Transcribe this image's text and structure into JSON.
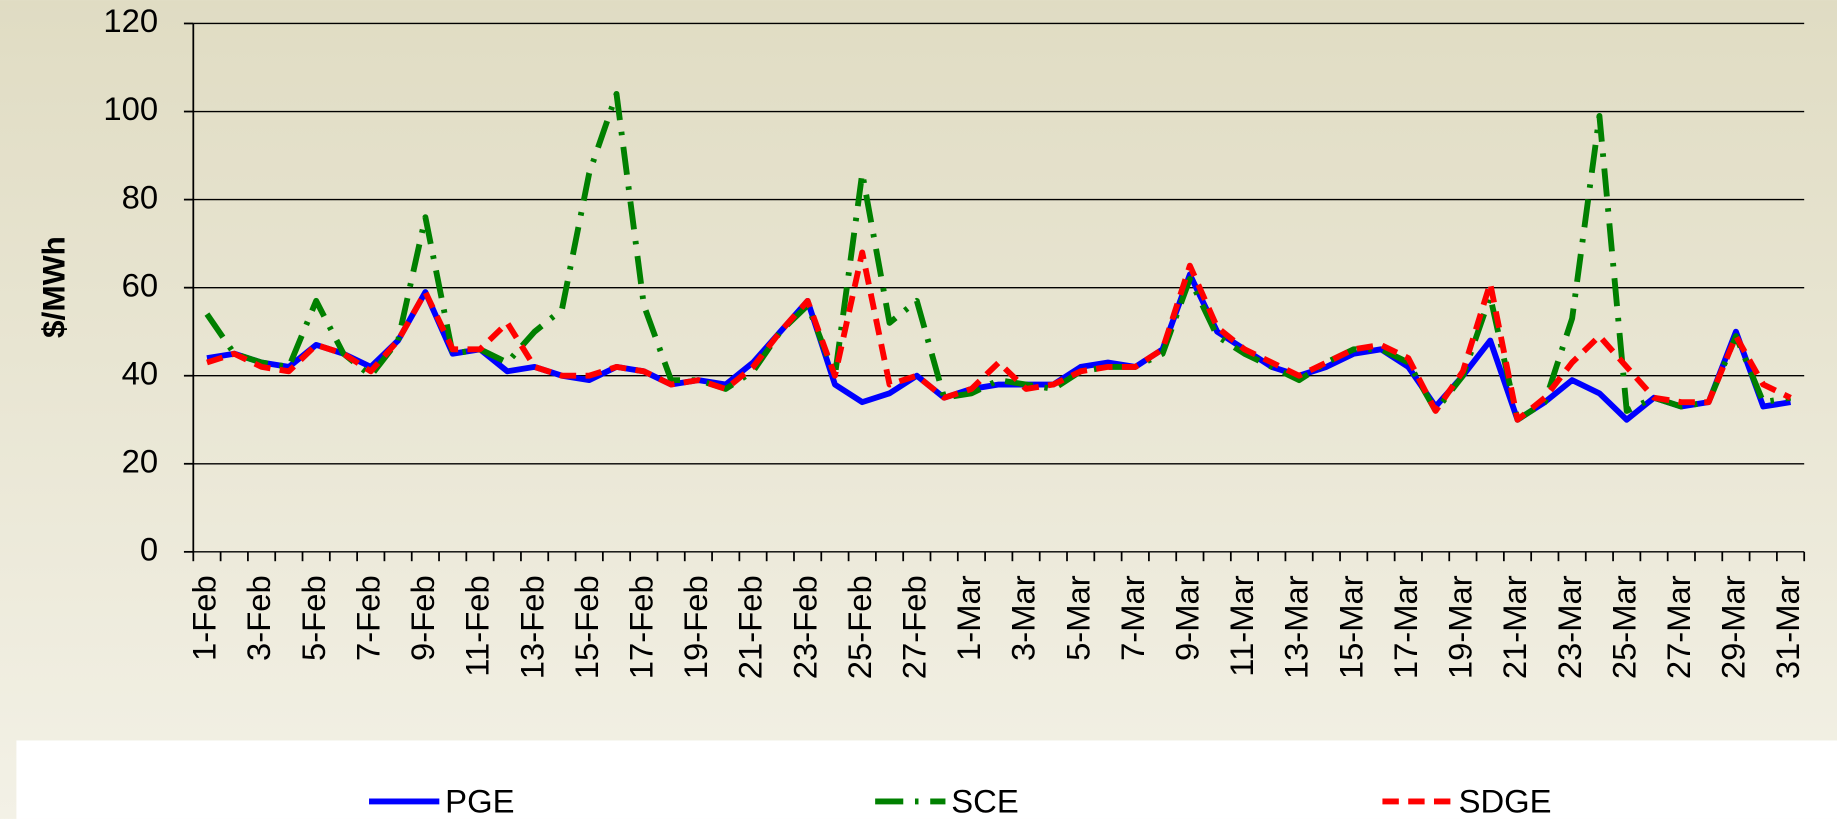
{
  "chart_data": {
    "type": "line",
    "y_label": "$/MWh",
    "categories": [
      "1-Feb",
      null,
      "3-Feb",
      null,
      "5-Feb",
      null,
      "7-Feb",
      null,
      "9-Feb",
      null,
      "11-Feb",
      null,
      "13-Feb",
      null,
      "15-Feb",
      null,
      "17-Feb",
      null,
      "19-Feb",
      null,
      "21-Feb",
      null,
      "23-Feb",
      null,
      "25-Feb",
      null,
      "27-Feb",
      null,
      "1-Mar",
      null,
      "3-Mar",
      null,
      "5-Mar",
      null,
      "7-Mar",
      null,
      "9-Mar",
      null,
      "11-Mar",
      null,
      "13-Mar",
      null,
      "15-Mar",
      null,
      "17-Mar",
      null,
      "19-Mar",
      null,
      "21-Mar",
      null,
      "23-Mar",
      null,
      "25-Mar",
      null,
      "27-Mar",
      null,
      "29-Mar",
      null,
      "31-Mar"
    ],
    "series": [
      {
        "name": "PGE",
        "color": "#0000ff",
        "style": "solid",
        "values": [
          44,
          45,
          43,
          42,
          47,
          45,
          42,
          48,
          59,
          45,
          46,
          41,
          42,
          40,
          39,
          42,
          41,
          38,
          39,
          38,
          43,
          50,
          57,
          38,
          34,
          36,
          40,
          35,
          37,
          38,
          38,
          38,
          42,
          43,
          42,
          46,
          63,
          50,
          46,
          42,
          40,
          42,
          45,
          46,
          42,
          33,
          40,
          48,
          30,
          34,
          39,
          36,
          30,
          35,
          33,
          34,
          50,
          33,
          34
        ]
      },
      {
        "name": "SCE",
        "color": "#008000",
        "style": "dashdot",
        "values": [
          54,
          45,
          43,
          42,
          57,
          45,
          40,
          48,
          76,
          45,
          46,
          43,
          50,
          55,
          86,
          104,
          56,
          39,
          39,
          37,
          41,
          50,
          56,
          40,
          86,
          52,
          57,
          35,
          36,
          39,
          38,
          37,
          41,
          42,
          42,
          45,
          62,
          49,
          45,
          42,
          39,
          43,
          46,
          46,
          43,
          32,
          40,
          58,
          30,
          34,
          53,
          99,
          32,
          35,
          33,
          34,
          49,
          34,
          35
        ]
      },
      {
        "name": "SDGE",
        "color": "#ff0000",
        "style": "dash",
        "values": [
          43,
          45,
          42,
          41,
          47,
          45,
          41,
          48,
          59,
          46,
          46,
          52,
          42,
          40,
          40,
          42,
          41,
          38,
          39,
          37,
          42,
          50,
          57,
          40,
          68,
          38,
          40,
          35,
          37,
          43,
          37,
          38,
          41,
          42,
          42,
          46,
          65,
          51,
          46,
          43,
          40,
          43,
          46,
          47,
          44,
          32,
          41,
          61,
          30,
          35,
          43,
          49,
          42,
          35,
          34,
          34,
          49,
          38,
          35
        ]
      }
    ],
    "ylim": [
      0,
      120
    ],
    "yticks": [
      0,
      20,
      40,
      60,
      80,
      100,
      120
    ],
    "grid": true,
    "legend": "bottom"
  }
}
